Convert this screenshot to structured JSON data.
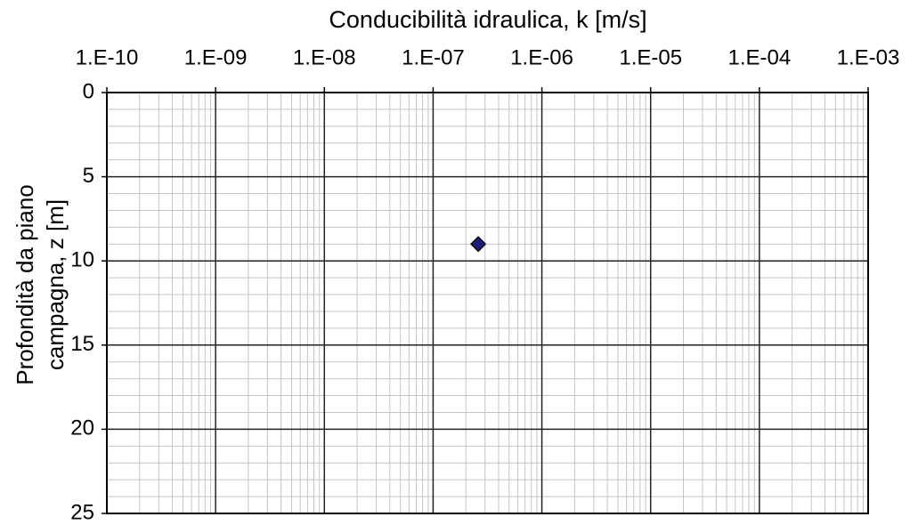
{
  "chart_data": {
    "type": "scatter",
    "xlabel": "Conducibilità idraulica, k [m/s]",
    "ylabel": "Profondità da piano campagna, z [m]",
    "xscale": "log",
    "xaxis_position": "top",
    "yinvert": true,
    "xlim": [
      1e-10,
      0.001
    ],
    "xticks": [
      {
        "value": 1e-10,
        "label": "1.E-10"
      },
      {
        "value": 1e-09,
        "label": "1.E-09"
      },
      {
        "value": 1e-08,
        "label": "1.E-08"
      },
      {
        "value": 1e-07,
        "label": "1.E-07"
      },
      {
        "value": 1e-06,
        "label": "1.E-06"
      },
      {
        "value": 1e-05,
        "label": "1.E-05"
      },
      {
        "value": 0.0001,
        "label": "1.E-04"
      },
      {
        "value": 0.001,
        "label": "1.E-03"
      }
    ],
    "ylim": [
      0,
      25
    ],
    "yticks": [
      0,
      5,
      10,
      15,
      20,
      25
    ],
    "grid": true,
    "minor_grid": true,
    "series": [
      {
        "color": "#1c1c80",
        "x": [
          2.6e-07
        ],
        "values": [
          9
        ]
      }
    ]
  }
}
